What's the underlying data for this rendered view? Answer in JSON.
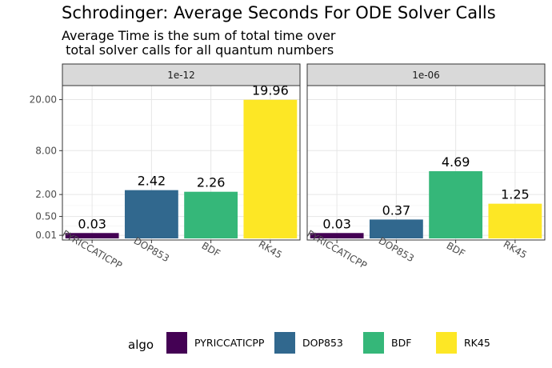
{
  "chart_data": {
    "type": "bar",
    "title": "Schrodinger: Average Seconds For ODE Solver Calls",
    "subtitle_lines": [
      "Average Time is the sum of total time over",
      " total solver calls for all quantum numbers"
    ],
    "xlabel": "",
    "ylabel": "",
    "y_scale": "sqrt",
    "ylim": [
      0,
      23
    ],
    "y_ticks": [
      0.01,
      0.5,
      2,
      8,
      20
    ],
    "y_tick_labels": [
      "0.01",
      "0.50",
      "2.00",
      "8.00",
      "20.00"
    ],
    "categories": [
      "PYRICCATICPP",
      "DOP853",
      "BDF",
      "RK45"
    ],
    "legend": {
      "title": "algo",
      "position": "bottom",
      "entries": [
        "PYRICCATICPP",
        "DOP853",
        "BDF",
        "RK45"
      ]
    },
    "colors": {
      "PYRICCATICPP": "#440154",
      "DOP853": "#31688E",
      "BDF": "#35B779",
      "RK45": "#FDE725"
    },
    "grid": true,
    "panels": [
      {
        "strip": "1e-12",
        "values": [
          0.03,
          2.42,
          2.26,
          19.96
        ],
        "labels": [
          "0.03",
          "2.42",
          "2.26",
          "19.96"
        ]
      },
      {
        "strip": "1e-06",
        "values": [
          0.03,
          0.37,
          4.69,
          1.25
        ],
        "labels": [
          "0.03",
          "0.37",
          "4.69",
          "1.25"
        ]
      }
    ]
  }
}
